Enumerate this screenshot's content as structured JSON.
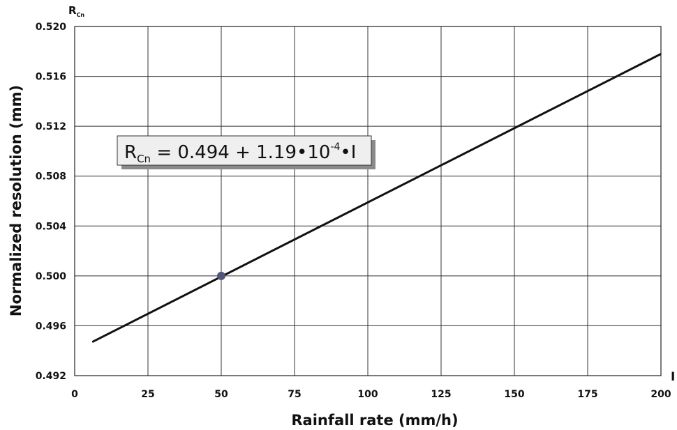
{
  "chart_data": {
    "type": "line",
    "xlabel": "Rainfall rate (mm/h)",
    "ylabel": "Normalized resolution (mm)",
    "x_axis_symbol": "I",
    "y_axis_symbol": "R",
    "y_axis_symbol_sub": "Cn",
    "xlim": [
      0,
      200
    ],
    "ylim": [
      0.492,
      0.52
    ],
    "x_ticks": [
      "0",
      "25",
      "50",
      "75",
      "100",
      "125",
      "150",
      "175",
      "200"
    ],
    "y_ticks": [
      "0.492",
      "0.496",
      "0.500",
      "0.504",
      "0.508",
      "0.512",
      "0.516",
      "0.520"
    ],
    "grid": true,
    "equation": {
      "lhs": "R",
      "lhs_sub": "Cn",
      "body": " = 0.494 + 1.19•10",
      "exponent": "-4",
      "tail": "•I"
    },
    "series": [
      {
        "x": [
          6,
          200
        ],
        "y": [
          0.4947,
          0.5178
        ],
        "color": "#111111"
      }
    ],
    "marker": {
      "x": 50,
      "y": 0.5,
      "color": "#55557a"
    }
  }
}
